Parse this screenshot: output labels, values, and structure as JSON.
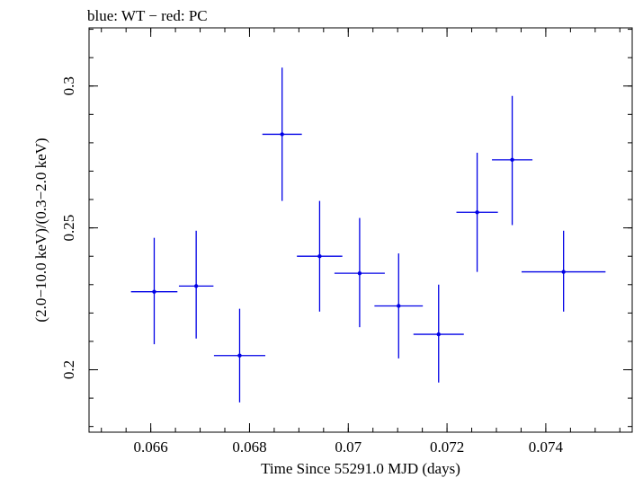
{
  "chart_data": {
    "type": "scatter",
    "title": "blue: WT − red: PC",
    "xlabel": "Time Since 55291.0 MJD (days)",
    "ylabel": "(2.0−10.0 keV)/(0.3−2.0 keV)",
    "xlim": [
      0.06475,
      0.07575
    ],
    "ylim": [
      0.178,
      0.3205
    ],
    "x_ticks": [
      0.066,
      0.068,
      0.07,
      0.072,
      0.074
    ],
    "x_tick_labels": [
      "0.066",
      "0.068",
      "0.07",
      "0.072",
      "0.074"
    ],
    "y_ticks": [
      0.2,
      0.25,
      0.3
    ],
    "y_tick_labels": [
      "0.2",
      "0.25",
      "0.3"
    ],
    "series": [
      {
        "name": "WT",
        "color": "#0000e6",
        "points": [
          {
            "x": 0.06607,
            "xerr": 0.00047,
            "y": 0.2275,
            "ylo": 0.209,
            "yhi": 0.2465
          },
          {
            "x": 0.06692,
            "xerr": 0.00035,
            "y": 0.2295,
            "ylo": 0.211,
            "yhi": 0.249
          },
          {
            "x": 0.0678,
            "xerr": 0.00052,
            "y": 0.205,
            "ylo": 0.1885,
            "yhi": 0.2215
          },
          {
            "x": 0.06866,
            "xerr": 0.0004,
            "y": 0.283,
            "ylo": 0.2595,
            "yhi": 0.3065
          },
          {
            "x": 0.06942,
            "xerr": 0.00046,
            "y": 0.24,
            "ylo": 0.2205,
            "yhi": 0.2595
          },
          {
            "x": 0.07023,
            "xerr": 0.00051,
            "y": 0.234,
            "ylo": 0.215,
            "yhi": 0.2535
          },
          {
            "x": 0.07102,
            "xerr": 0.00049,
            "y": 0.2225,
            "ylo": 0.204,
            "yhi": 0.241
          },
          {
            "x": 0.07183,
            "xerr": 0.00051,
            "y": 0.2125,
            "ylo": 0.1955,
            "yhi": 0.23
          },
          {
            "x": 0.07261,
            "xerr": 0.00042,
            "y": 0.2555,
            "ylo": 0.2345,
            "yhi": 0.2765
          },
          {
            "x": 0.07332,
            "xerr": 0.00041,
            "y": 0.274,
            "ylo": 0.251,
            "yhi": 0.2965
          },
          {
            "x": 0.07436,
            "xerr": 0.00085,
            "y": 0.2345,
            "ylo": 0.2205,
            "yhi": 0.249
          }
        ]
      }
    ]
  }
}
